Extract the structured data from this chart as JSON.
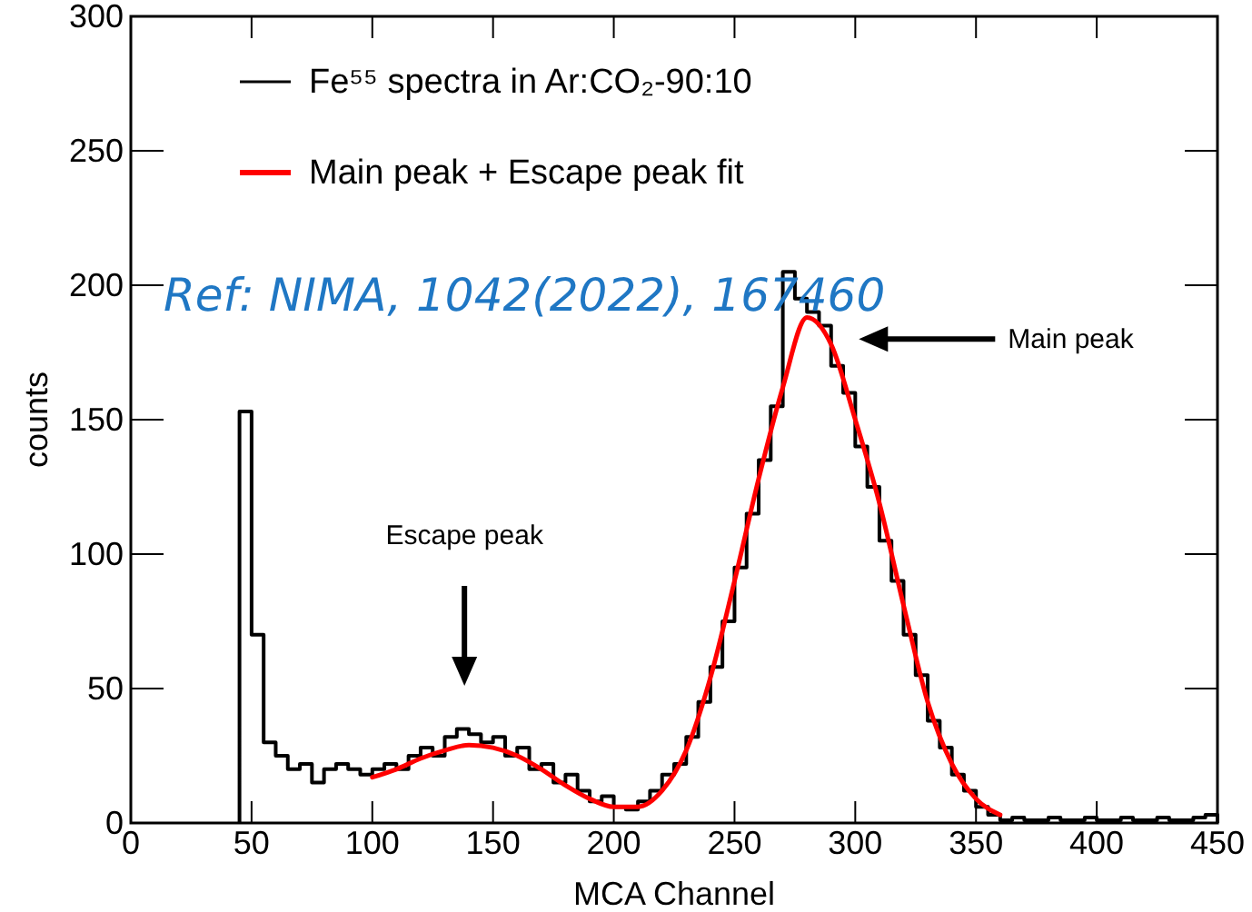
{
  "chart_data": {
    "type": "histogram",
    "xlabel": "MCA Channel",
    "ylabel": "counts",
    "xlim": [
      0,
      450
    ],
    "ylim": [
      0,
      300
    ],
    "xticks": [
      0,
      50,
      100,
      150,
      200,
      250,
      300,
      350,
      400,
      450
    ],
    "yticks": [
      0,
      50,
      100,
      150,
      200,
      250,
      300
    ],
    "grid": false,
    "legend": "top left",
    "series": [
      {
        "name": "Fe⁵⁵ spectra in Ar:CO₂-90:10",
        "color": "#000000",
        "bins": [
          45,
          50,
          55,
          60,
          65,
          70,
          75,
          80,
          85,
          90,
          95,
          100,
          105,
          110,
          115,
          120,
          125,
          130,
          135,
          140,
          145,
          150,
          155,
          160,
          165,
          170,
          175,
          180,
          185,
          190,
          195,
          200,
          205,
          210,
          215,
          220,
          225,
          230,
          235,
          240,
          245,
          250,
          255,
          260,
          265,
          270,
          275,
          280,
          285,
          290,
          295,
          300,
          305,
          310,
          315,
          320,
          325,
          330,
          335,
          340,
          345,
          350,
          355,
          360,
          365,
          370,
          375,
          380,
          385,
          390,
          395,
          400,
          405,
          410,
          415,
          420,
          425,
          430,
          435,
          440,
          445,
          450
        ],
        "values": [
          153,
          70,
          30,
          25,
          20,
          22,
          15,
          20,
          22,
          20,
          18,
          20,
          22,
          20,
          25,
          28,
          25,
          32,
          35,
          33,
          30,
          32,
          25,
          28,
          20,
          22,
          15,
          18,
          12,
          8,
          10,
          6,
          5,
          8,
          12,
          18,
          22,
          32,
          45,
          58,
          75,
          95,
          115,
          135,
          155,
          205,
          195,
          190,
          185,
          170,
          160,
          140,
          125,
          105,
          90,
          70,
          55,
          38,
          28,
          18,
          12,
          6,
          3,
          1,
          2,
          1,
          1,
          2,
          1,
          1,
          2,
          1,
          1,
          2,
          1,
          1,
          2,
          1,
          1,
          2,
          3
        ]
      },
      {
        "name": "Main peak + Escape peak fit",
        "type": "line",
        "color": "#ff0000",
        "x": [
          100,
          110,
          120,
          130,
          140,
          150,
          160,
          170,
          180,
          190,
          200,
          210,
          220,
          230,
          240,
          250,
          260,
          270,
          280,
          290,
          300,
          310,
          320,
          330,
          340,
          350,
          360
        ],
        "values": [
          17,
          20,
          24,
          27,
          29,
          28,
          25,
          20,
          14,
          9,
          6,
          6,
          12,
          27,
          54,
          90,
          128,
          162,
          188,
          178,
          150,
          119,
          81,
          45,
          22,
          9,
          3
        ]
      }
    ],
    "annotations": [
      "Ref: NIMA, 1042(2022), 167460",
      "Escape peak",
      "Main peak"
    ]
  }
}
